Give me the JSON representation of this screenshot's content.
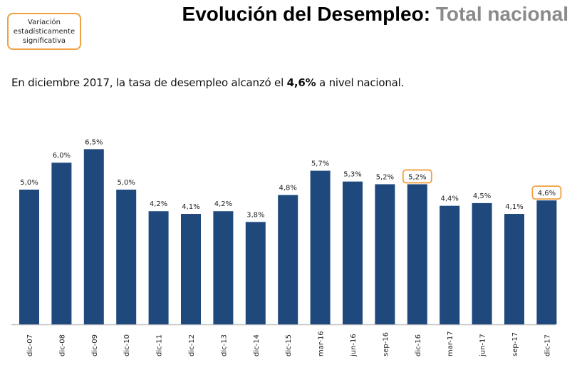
{
  "legend": {
    "text": "Variación estadísticamente significativa",
    "border_color": "#f0a040"
  },
  "header": {
    "title_main": "Evolución del Desempleo:",
    "title_sub": "Total nacional"
  },
  "subtitle": {
    "before": "En diciembre 2017, la tasa de desempleo alcanzó el ",
    "highlight": "4,6%",
    "after": " a nivel nacional."
  },
  "chart_data": {
    "type": "bar",
    "title": "Evolución del Desempleo: Total nacional",
    "xlabel": "",
    "ylabel": "",
    "ylim": [
      0,
      6.5
    ],
    "grid": false,
    "bar_color": "#1f497d",
    "highlight_color": "#f0a040",
    "categories": [
      "dic-07",
      "dic-08",
      "dic-09",
      "dic-10",
      "dic-11",
      "dic-12",
      "dic-13",
      "dic-14",
      "dic-15",
      "mar-16",
      "jun-16",
      "sep-16",
      "dic-16",
      "mar-17",
      "jun-17",
      "sep-17",
      "dic-17"
    ],
    "values": [
      5.0,
      6.0,
      6.5,
      5.0,
      4.2,
      4.1,
      4.2,
      3.8,
      4.8,
      5.7,
      5.3,
      5.2,
      5.2,
      4.4,
      4.5,
      4.1,
      4.6
    ],
    "labels": [
      "5,0%",
      "6,0%",
      "6,5%",
      "5,0%",
      "4,2%",
      "4,1%",
      "4,2%",
      "3,8%",
      "4,8%",
      "5,7%",
      "5,3%",
      "5,2%",
      "5,2%",
      "4,4%",
      "4,5%",
      "4,1%",
      "4,6%"
    ],
    "highlighted": [
      "dic-16",
      "dic-17"
    ]
  }
}
